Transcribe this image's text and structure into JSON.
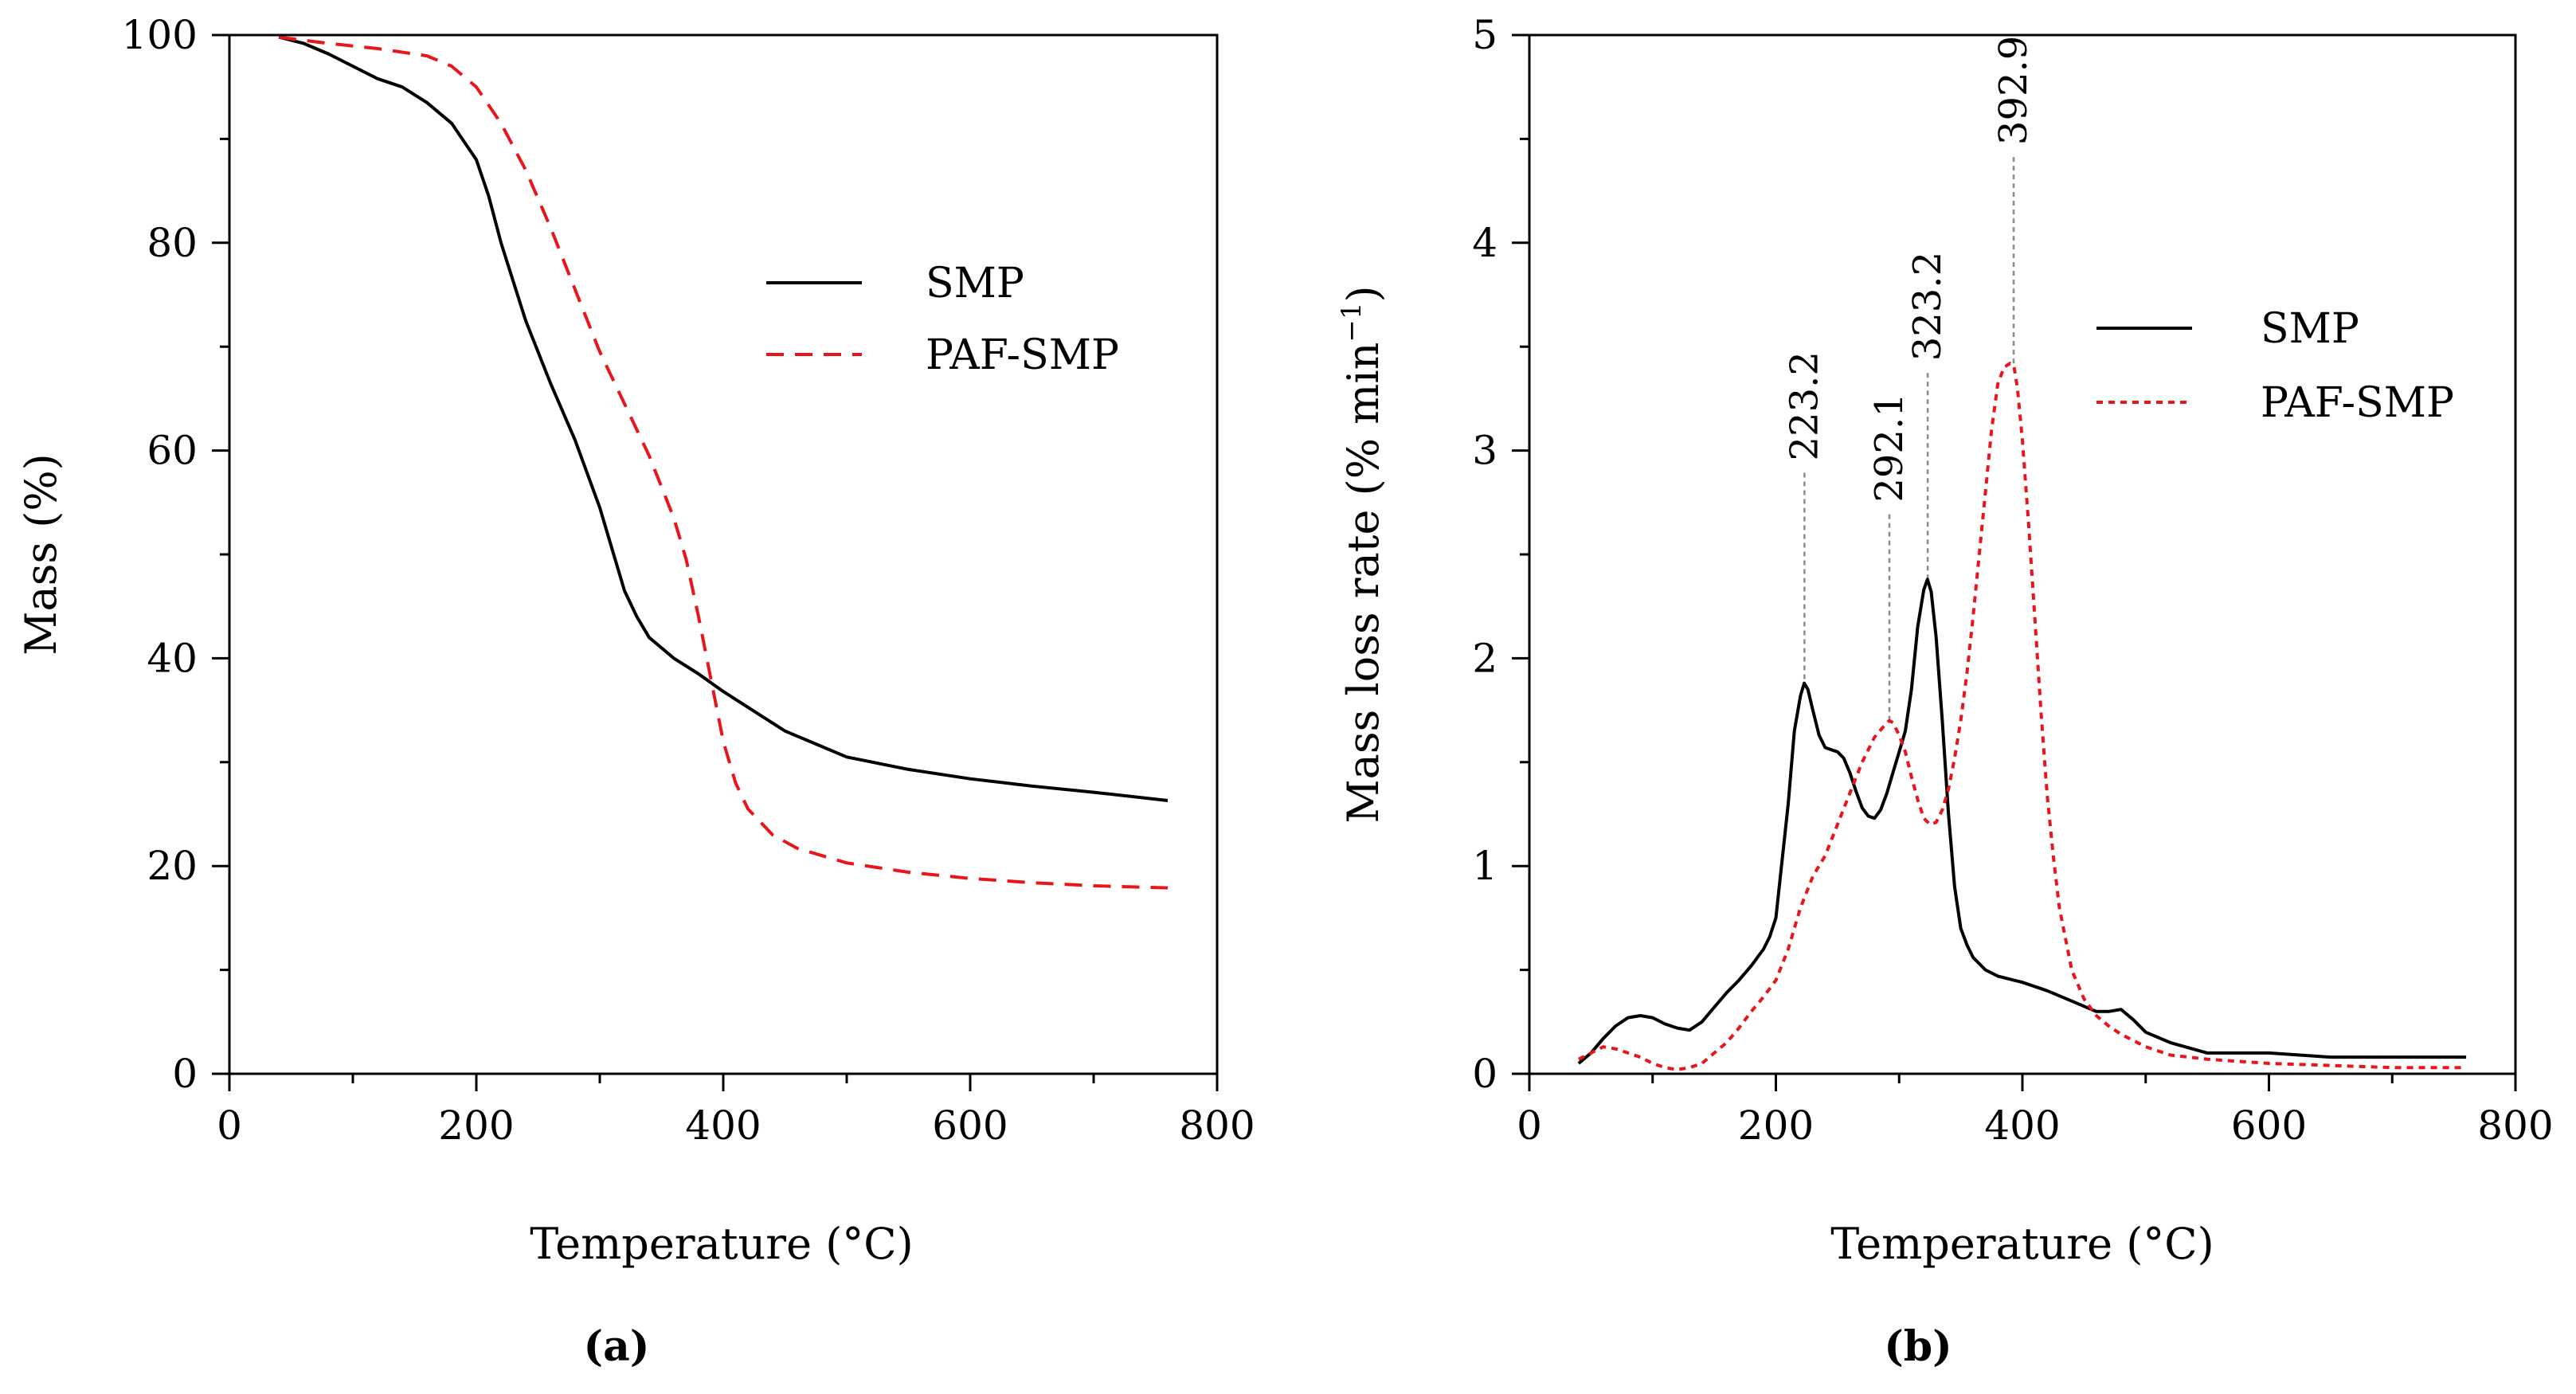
{
  "chart_data": [
    {
      "type": "line",
      "panel_label": "(a)",
      "xlabel": "Temperature (°C)",
      "ylabel": "Mass (%)",
      "xlim": [
        0,
        800
      ],
      "ylim": [
        0,
        100
      ],
      "xticks": [
        0,
        200,
        400,
        600,
        800
      ],
      "yticks": [
        0,
        20,
        40,
        60,
        80,
        100
      ],
      "grid": false,
      "legend_position": "center-right",
      "series": [
        {
          "name": "SMP",
          "color": "#000000",
          "style": "solid",
          "x": [
            40,
            60,
            80,
            100,
            120,
            140,
            160,
            180,
            200,
            210,
            220,
            240,
            260,
            280,
            300,
            310,
            320,
            330,
            340,
            360,
            380,
            400,
            450,
            500,
            550,
            600,
            650,
            700,
            760
          ],
          "y": [
            99.8,
            99.2,
            98.2,
            97.0,
            95.8,
            95.0,
            93.5,
            91.5,
            88.0,
            84.5,
            80.0,
            72.5,
            66.5,
            61.0,
            54.5,
            50.5,
            46.5,
            44.0,
            42.0,
            40.0,
            38.5,
            36.8,
            33.0,
            30.5,
            29.3,
            28.4,
            27.7,
            27.1,
            26.3
          ]
        },
        {
          "name": "PAF-SMP",
          "color": "#e8161b",
          "style": "dashed",
          "x": [
            40,
            80,
            120,
            160,
            180,
            200,
            220,
            240,
            260,
            280,
            300,
            320,
            340,
            360,
            370,
            380,
            390,
            395,
            400,
            410,
            420,
            440,
            460,
            500,
            550,
            600,
            650,
            700,
            760
          ],
          "y": [
            99.8,
            99.2,
            98.7,
            98.0,
            97.0,
            95.0,
            91.5,
            87.0,
            81.5,
            75.5,
            69.5,
            64.5,
            59.5,
            53.5,
            49.5,
            44.0,
            38.0,
            35.0,
            32.0,
            28.0,
            25.5,
            23.0,
            21.7,
            20.3,
            19.4,
            18.8,
            18.4,
            18.1,
            17.9
          ]
        }
      ]
    },
    {
      "type": "line",
      "panel_label": "(b)",
      "xlabel": "Temperature (°C)",
      "ylabel": "Mass loss rate (% min",
      "ylabel_superscript": "−1",
      "ylabel_close": ")",
      "xlim": [
        0,
        800
      ],
      "ylim": [
        0,
        5
      ],
      "xticks": [
        0,
        200,
        400,
        600,
        800
      ],
      "yticks": [
        0,
        1,
        2,
        3,
        4,
        5
      ],
      "grid": false,
      "legend_position": "center-right",
      "annotations": [
        {
          "x": 223.2,
          "y": 1.9,
          "label": "223.2"
        },
        {
          "x": 292.1,
          "y": 1.7,
          "label": "292.1"
        },
        {
          "x": 323.2,
          "y": 2.38,
          "label": "323.2"
        },
        {
          "x": 392.9,
          "y": 3.42,
          "label": "392.9"
        }
      ],
      "series": [
        {
          "name": "SMP",
          "color": "#000000",
          "style": "solid",
          "x": [
            40,
            50,
            60,
            70,
            80,
            90,
            100,
            110,
            120,
            130,
            140,
            150,
            160,
            170,
            180,
            190,
            195,
            200,
            210,
            215,
            220,
            223,
            226,
            230,
            235,
            240,
            245,
            250,
            255,
            260,
            265,
            270,
            275,
            280,
            285,
            290,
            295,
            300,
            305,
            310,
            315,
            320,
            323,
            326,
            330,
            335,
            340,
            345,
            350,
            355,
            360,
            370,
            380,
            400,
            420,
            440,
            460,
            470,
            480,
            490,
            500,
            520,
            550,
            600,
            650,
            700,
            760
          ],
          "y": [
            0.05,
            0.1,
            0.17,
            0.23,
            0.27,
            0.28,
            0.27,
            0.24,
            0.22,
            0.21,
            0.25,
            0.32,
            0.39,
            0.45,
            0.52,
            0.6,
            0.66,
            0.75,
            1.3,
            1.65,
            1.82,
            1.88,
            1.85,
            1.75,
            1.63,
            1.57,
            1.56,
            1.55,
            1.52,
            1.45,
            1.36,
            1.28,
            1.24,
            1.23,
            1.27,
            1.35,
            1.45,
            1.55,
            1.65,
            1.85,
            2.15,
            2.33,
            2.38,
            2.32,
            2.1,
            1.7,
            1.25,
            0.9,
            0.7,
            0.62,
            0.56,
            0.5,
            0.47,
            0.44,
            0.4,
            0.35,
            0.3,
            0.3,
            0.31,
            0.26,
            0.2,
            0.15,
            0.1,
            0.1,
            0.08,
            0.08,
            0.08
          ]
        },
        {
          "name": "PAF-SMP",
          "color": "#e8161b",
          "style": "dotted",
          "x": [
            40,
            50,
            60,
            70,
            80,
            90,
            100,
            110,
            120,
            130,
            140,
            150,
            160,
            170,
            180,
            190,
            200,
            210,
            220,
            230,
            240,
            250,
            260,
            270,
            280,
            290,
            292,
            295,
            300,
            305,
            310,
            315,
            320,
            325,
            330,
            335,
            340,
            345,
            350,
            355,
            360,
            365,
            370,
            375,
            380,
            385,
            390,
            393,
            396,
            400,
            405,
            410,
            415,
            420,
            425,
            430,
            440,
            450,
            460,
            470,
            480,
            500,
            520,
            550,
            600,
            650,
            700,
            760
          ],
          "y": [
            0.07,
            0.1,
            0.13,
            0.12,
            0.1,
            0.08,
            0.05,
            0.03,
            0.02,
            0.03,
            0.05,
            0.1,
            0.15,
            0.22,
            0.3,
            0.37,
            0.45,
            0.6,
            0.8,
            0.95,
            1.05,
            1.2,
            1.35,
            1.5,
            1.62,
            1.69,
            1.7,
            1.69,
            1.63,
            1.55,
            1.43,
            1.32,
            1.23,
            1.2,
            1.21,
            1.27,
            1.37,
            1.52,
            1.7,
            1.93,
            2.2,
            2.5,
            2.8,
            3.1,
            3.32,
            3.4,
            3.42,
            3.41,
            3.3,
            3.05,
            2.65,
            2.2,
            1.75,
            1.35,
            1.05,
            0.8,
            0.5,
            0.36,
            0.28,
            0.23,
            0.19,
            0.13,
            0.09,
            0.07,
            0.05,
            0.04,
            0.03,
            0.03
          ]
        }
      ]
    }
  ]
}
